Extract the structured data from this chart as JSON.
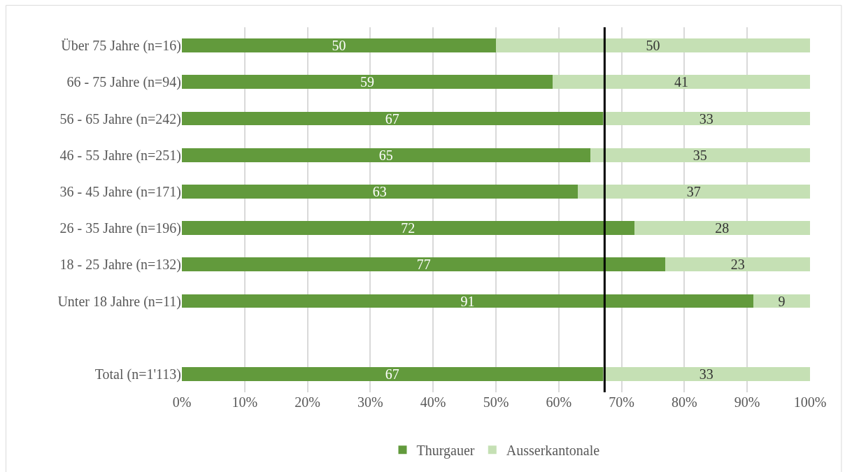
{
  "chart_data": {
    "type": "bar",
    "orientation": "horizontal",
    "stacked": true,
    "data_labels": true,
    "categories": [
      "Über 75 Jahre (n=16)",
      "66 - 75 Jahre (n=94)",
      "56 - 65 Jahre (n=242)",
      "46 - 55 Jahre (n=251)",
      "36 - 45 Jahre (n=171)",
      "26 - 35 Jahre (n=196)",
      "18 - 25 Jahre (n=132)",
      "Unter 18 Jahre (n=11)",
      null,
      "Total (n=1'113)"
    ],
    "series": [
      {
        "name": "Thurgauer",
        "color": "#629a3c",
        "values": [
          50,
          59,
          67,
          65,
          63,
          72,
          77,
          91,
          null,
          67
        ]
      },
      {
        "name": "Ausserkantonale",
        "color": "#c5e0b4",
        "values": [
          50,
          41,
          33,
          35,
          37,
          28,
          23,
          9,
          null,
          33
        ]
      }
    ],
    "xlim": [
      0,
      100
    ],
    "xticks": [
      {
        "value": 0,
        "label": "0%"
      },
      {
        "value": 10,
        "label": "10%"
      },
      {
        "value": 20,
        "label": "20%"
      },
      {
        "value": 30,
        "label": "30%"
      },
      {
        "value": 40,
        "label": "40%"
      },
      {
        "value": 50,
        "label": "50%"
      },
      {
        "value": 60,
        "label": "60%"
      },
      {
        "value": 70,
        "label": "70%"
      },
      {
        "value": 80,
        "label": "80%"
      },
      {
        "value": 90,
        "label": "90%"
      },
      {
        "value": 100,
        "label": "100%"
      }
    ],
    "ref_lines": [
      {
        "axis": "x",
        "value": 67.3,
        "color": "#000000"
      }
    ],
    "grid": "x",
    "legend": "bottom"
  }
}
